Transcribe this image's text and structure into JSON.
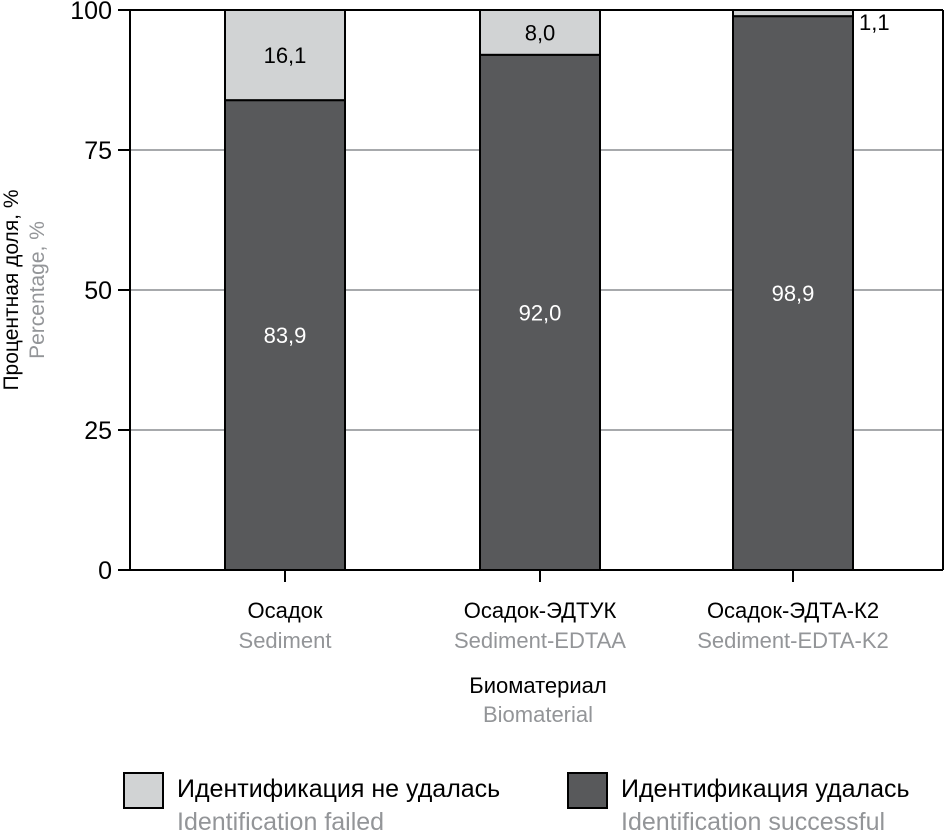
{
  "chart_data": {
    "type": "bar",
    "stacked": true,
    "categories": [
      {
        "ru": "Осадок",
        "en": "Sediment"
      },
      {
        "ru": "Осадок-ЭДТУК",
        "en": "Sediment-EDTAA"
      },
      {
        "ru": "Осадок-ЭДТА-К2",
        "en": "Sediment-EDTA-K2"
      }
    ],
    "series": [
      {
        "name_ru": "Идентификация удалась",
        "name_en": "Identification successful",
        "color": "#58595b",
        "values": [
          83.9,
          92.0,
          98.9
        ],
        "labels": [
          "83,9",
          "92,0",
          "98,9"
        ]
      },
      {
        "name_ru": "Идентификация не удалась",
        "name_en": "Identification failed",
        "color": "#d1d3d4",
        "values": [
          16.1,
          8.0,
          1.1
        ],
        "labels": [
          "16,1",
          "8,0",
          "1,1"
        ]
      }
    ],
    "xlabel_ru": "Биоматериал",
    "xlabel_en": "Biomaterial",
    "ylabel_ru": "Процентная доля, %",
    "ylabel_en": "Percentage, %",
    "ylim": [
      0,
      100
    ],
    "yticks": [
      0,
      25,
      50,
      75,
      100
    ],
    "grid": true,
    "legend_position": "bottom"
  }
}
